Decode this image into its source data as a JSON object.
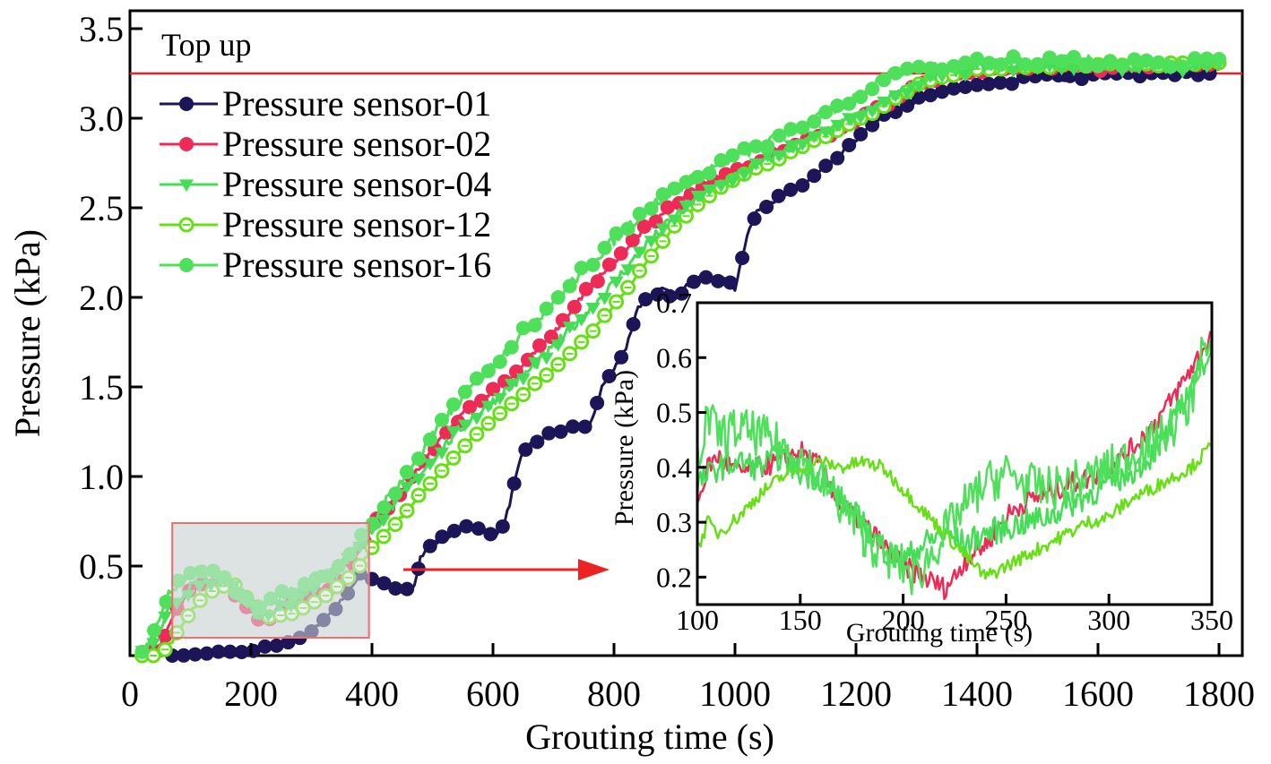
{
  "chart_data": {
    "type": "line",
    "title": "",
    "xlabel": "Grouting time (s)",
    "ylabel": "Pressure (kPa)",
    "xlim": [
      0,
      1850
    ],
    "ylim": [
      0,
      3.55
    ],
    "xticks": [
      0,
      200,
      400,
      600,
      800,
      1000,
      1200,
      1400,
      1600,
      1800
    ],
    "xtick_labels": [
      "0",
      "200",
      "400",
      "600",
      "800",
      "1000",
      "1200",
      "1400",
      "1600",
      "1800"
    ],
    "yticks": [
      0.5,
      1.0,
      1.5,
      2.0,
      2.5,
      3.0,
      3.5
    ],
    "ytick_labels": [
      "0.5",
      "1.0",
      "1.5",
      "2.0",
      "2.5",
      "3.0",
      "3.5"
    ],
    "grid": false,
    "legend_position": "top-left",
    "reference_line": {
      "label": "Top up",
      "y": 3.25,
      "color": "#e8202a"
    },
    "highlight_region": {
      "x": [
        70,
        395
      ],
      "y": [
        0.1,
        0.74
      ],
      "fill": "#dde2e3",
      "stroke": "#f07070"
    },
    "arrow": {
      "from_x": 450,
      "to_x": 790,
      "y": 0.49,
      "color": "#ee2222"
    },
    "series": [
      {
        "name": "Pressure sensor-01",
        "color": "#1c1558",
        "marker": "circle-filled",
        "x": [
          70,
          100,
          150,
          200,
          250,
          300,
          340,
          380,
          400,
          420,
          450,
          470,
          480,
          500,
          540,
          580,
          600,
          620,
          650,
          700,
          760,
          780,
          800,
          820,
          840,
          860,
          880,
          900,
          940,
          980,
          1000,
          1020,
          1040,
          1100,
          1150,
          1200,
          1250,
          1300,
          1350,
          1400,
          1450,
          1500,
          1550,
          1600,
          1650,
          1700,
          1750,
          1800
        ],
        "y": [
          0.0,
          0.0,
          0.01,
          0.03,
          0.06,
          0.14,
          0.26,
          0.45,
          0.43,
          0.4,
          0.34,
          0.4,
          0.55,
          0.62,
          0.7,
          0.72,
          0.66,
          0.75,
          1.15,
          1.25,
          1.28,
          1.5,
          1.6,
          1.72,
          1.95,
          2.0,
          2.05,
          2.0,
          2.12,
          2.1,
          2.05,
          2.35,
          2.5,
          2.6,
          2.72,
          2.88,
          3.02,
          3.1,
          3.15,
          3.18,
          3.2,
          3.24,
          3.22,
          3.25,
          3.24,
          3.26,
          3.25,
          3.27
        ]
      },
      {
        "name": "Pressure sensor-02",
        "color": "#ee2a56",
        "marker": "circle-filled",
        "x": [
          20,
          50,
          70,
          90,
          110,
          140,
          170,
          200,
          220,
          250,
          280,
          320,
          360,
          380,
          400,
          450,
          500,
          550,
          600,
          650,
          700,
          750,
          800,
          850,
          900,
          950,
          1000,
          1050,
          1100,
          1150,
          1200,
          1250,
          1300,
          1350,
          1400,
          1450,
          1500,
          1600,
          1700,
          1800
        ],
        "y": [
          0.0,
          0.05,
          0.2,
          0.32,
          0.4,
          0.4,
          0.35,
          0.25,
          0.18,
          0.24,
          0.33,
          0.36,
          0.45,
          0.6,
          0.72,
          0.92,
          1.15,
          1.35,
          1.48,
          1.62,
          1.8,
          2.02,
          2.2,
          2.38,
          2.52,
          2.62,
          2.7,
          2.78,
          2.85,
          2.9,
          2.98,
          3.08,
          3.18,
          3.24,
          3.27,
          3.28,
          3.29,
          3.28,
          3.29,
          3.3
        ]
      },
      {
        "name": "Pressure sensor-04",
        "color": "#44dd55",
        "marker": "triangle-down",
        "x": [
          20,
          50,
          70,
          100,
          130,
          160,
          190,
          210,
          240,
          270,
          300,
          330,
          360,
          380,
          400,
          450,
          500,
          550,
          600,
          650,
          700,
          750,
          800,
          850,
          900,
          950,
          1000,
          1050,
          1100,
          1150,
          1200,
          1250,
          1300,
          1350,
          1400,
          1500,
          1600,
          1700,
          1800
        ],
        "y": [
          0.0,
          0.15,
          0.28,
          0.38,
          0.42,
          0.4,
          0.3,
          0.22,
          0.26,
          0.3,
          0.38,
          0.44,
          0.55,
          0.62,
          0.7,
          0.9,
          1.1,
          1.28,
          1.42,
          1.56,
          1.72,
          1.9,
          2.08,
          2.28,
          2.45,
          2.58,
          2.68,
          2.76,
          2.84,
          2.92,
          3.0,
          3.1,
          3.2,
          3.26,
          3.28,
          3.3,
          3.3,
          3.28,
          3.31
        ]
      },
      {
        "name": "Pressure sensor-12",
        "color": "#66e014",
        "marker": "circle-open",
        "x": [
          20,
          50,
          70,
          100,
          140,
          170,
          200,
          230,
          260,
          290,
          320,
          350,
          380,
          400,
          450,
          500,
          550,
          600,
          650,
          700,
          750,
          800,
          850,
          900,
          950,
          1000,
          1050,
          1100,
          1150,
          1200,
          1250,
          1300,
          1350,
          1400,
          1500,
          1600,
          1700,
          1800
        ],
        "y": [
          0.0,
          0.0,
          0.08,
          0.25,
          0.38,
          0.4,
          0.3,
          0.22,
          0.22,
          0.28,
          0.33,
          0.4,
          0.5,
          0.6,
          0.78,
          0.98,
          1.16,
          1.32,
          1.46,
          1.6,
          1.76,
          1.95,
          2.18,
          2.4,
          2.55,
          2.66,
          2.74,
          2.82,
          2.9,
          2.98,
          3.08,
          3.18,
          3.24,
          3.27,
          3.29,
          3.3,
          3.3,
          3.31
        ]
      },
      {
        "name": "Pressure sensor-16",
        "color": "#4ee05a",
        "marker": "circle-filled",
        "x": [
          20,
          40,
          60,
          80,
          100,
          130,
          160,
          190,
          210,
          240,
          270,
          300,
          330,
          360,
          390,
          420,
          450,
          500,
          550,
          600,
          650,
          700,
          750,
          800,
          850,
          900,
          950,
          1000,
          1050,
          1100,
          1150,
          1200,
          1250,
          1300,
          1350,
          1400,
          1500,
          1600,
          1700,
          1800
        ],
        "y": [
          0.0,
          0.12,
          0.32,
          0.4,
          0.46,
          0.48,
          0.42,
          0.33,
          0.26,
          0.32,
          0.36,
          0.4,
          0.45,
          0.55,
          0.68,
          0.85,
          0.98,
          1.22,
          1.45,
          1.62,
          1.8,
          1.98,
          2.15,
          2.32,
          2.48,
          2.6,
          2.7,
          2.78,
          2.86,
          2.94,
          3.02,
          3.12,
          3.24,
          3.28,
          3.3,
          3.31,
          3.32,
          3.32,
          3.3,
          3.33
        ]
      }
    ],
    "inset": {
      "xlabel": "Grouting time (s)",
      "ylabel": "Pressure (kPa)",
      "xlim": [
        100,
        350
      ],
      "ylim": [
        0.15,
        0.7
      ],
      "xticks": [
        100,
        150,
        200,
        250,
        300,
        350
      ],
      "xtick_labels": [
        "100",
        "150",
        "200",
        "250",
        "300",
        "350"
      ],
      "yticks": [
        0.2,
        0.3,
        0.4,
        0.5,
        0.6,
        0.7
      ],
      "ytick_labels": [
        "0.2",
        "0.3",
        "0.4",
        "0.5",
        "0.6",
        "0.7"
      ],
      "series": [
        {
          "name": "Pressure sensor-02",
          "color": "#ee2a56",
          "x": [
            100,
            105,
            110,
            120,
            130,
            140,
            150,
            160,
            170,
            180,
            190,
            200,
            210,
            215,
            220,
            225,
            230,
            240,
            250,
            260,
            270,
            280,
            290,
            300,
            310,
            320,
            330,
            340,
            350
          ],
          "y": [
            0.33,
            0.4,
            0.42,
            0.39,
            0.4,
            0.41,
            0.43,
            0.4,
            0.33,
            0.3,
            0.26,
            0.22,
            0.2,
            0.19,
            0.18,
            0.2,
            0.23,
            0.26,
            0.31,
            0.34,
            0.35,
            0.37,
            0.38,
            0.4,
            0.43,
            0.47,
            0.52,
            0.58,
            0.64
          ]
        },
        {
          "name": "Pressure sensor-04",
          "color": "#44dd55",
          "x": [
            100,
            110,
            120,
            130,
            140,
            150,
            160,
            170,
            180,
            190,
            200,
            210,
            220,
            230,
            240,
            250,
            260,
            270,
            280,
            290,
            300,
            310,
            320,
            330,
            340,
            350
          ],
          "y": [
            0.37,
            0.4,
            0.41,
            0.4,
            0.42,
            0.39,
            0.38,
            0.34,
            0.3,
            0.25,
            0.23,
            0.26,
            0.28,
            0.26,
            0.28,
            0.29,
            0.3,
            0.31,
            0.33,
            0.35,
            0.37,
            0.39,
            0.42,
            0.47,
            0.55,
            0.62
          ]
        },
        {
          "name": "Pressure sensor-12",
          "color": "#66e014",
          "x": [
            100,
            105,
            110,
            120,
            130,
            140,
            150,
            160,
            170,
            180,
            190,
            200,
            210,
            220,
            230,
            240,
            250,
            260,
            270,
            280,
            290,
            300,
            310,
            320,
            330,
            340,
            350
          ],
          "y": [
            0.25,
            0.3,
            0.28,
            0.31,
            0.35,
            0.38,
            0.4,
            0.41,
            0.4,
            0.41,
            0.4,
            0.36,
            0.32,
            0.28,
            0.24,
            0.2,
            0.22,
            0.24,
            0.26,
            0.28,
            0.3,
            0.31,
            0.34,
            0.36,
            0.38,
            0.4,
            0.44
          ]
        },
        {
          "name": "Pressure sensor-16",
          "color": "#4ee05a",
          "x": [
            100,
            105,
            110,
            120,
            130,
            140,
            150,
            160,
            170,
            180,
            190,
            200,
            205,
            210,
            220,
            230,
            240,
            250,
            260,
            270,
            280,
            290,
            300,
            310,
            320,
            330,
            340,
            345,
            350
          ],
          "y": [
            0.42,
            0.49,
            0.46,
            0.47,
            0.46,
            0.44,
            0.42,
            0.38,
            0.33,
            0.28,
            0.24,
            0.22,
            0.2,
            0.22,
            0.28,
            0.33,
            0.37,
            0.39,
            0.37,
            0.36,
            0.37,
            0.38,
            0.4,
            0.42,
            0.44,
            0.47,
            0.52,
            0.62,
            0.6
          ]
        }
      ]
    }
  }
}
